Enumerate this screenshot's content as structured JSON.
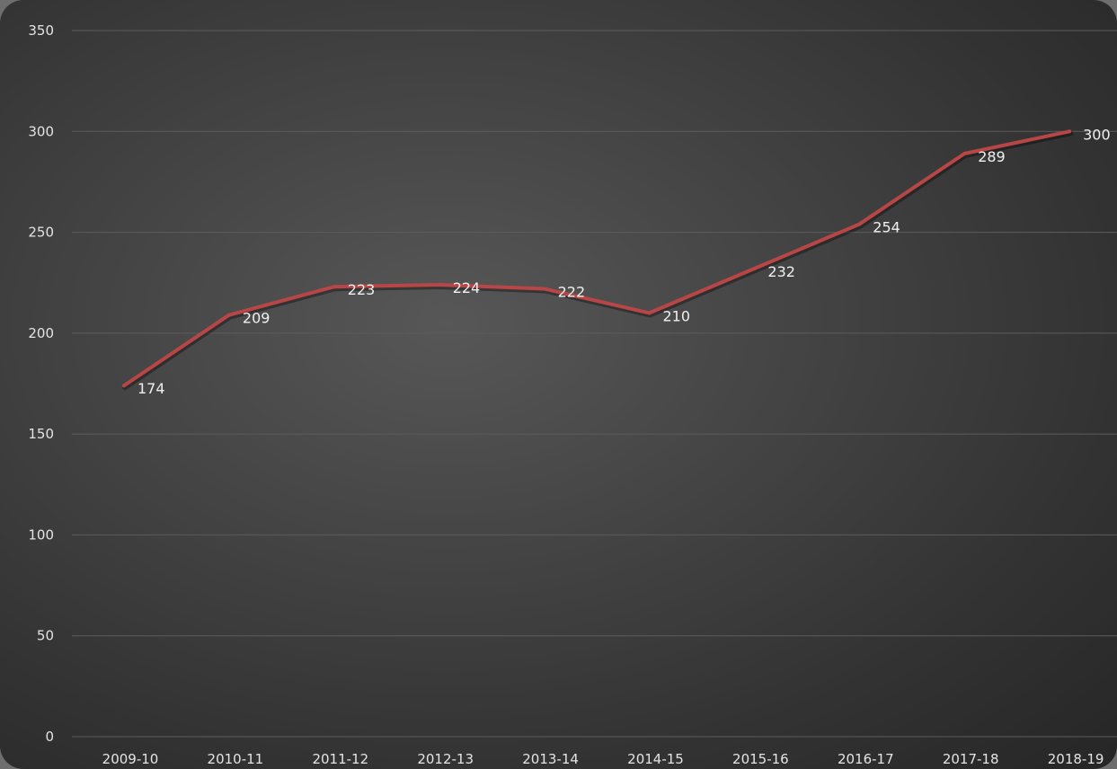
{
  "chart_data": {
    "type": "line",
    "categories": [
      "2009-10",
      "2010-11",
      "2011-12",
      "2012-13",
      "2013-14",
      "2014-15",
      "2015-16",
      "2016-17",
      "2017-18",
      "2018-19"
    ],
    "series": [
      {
        "values": [
          174,
          209,
          223,
          224,
          222,
          210,
          232,
          254,
          289,
          300
        ],
        "color": "#b84646"
      }
    ],
    "data_labels": [
      "174",
      "209",
      "223",
      "224",
      "222",
      "210",
      "232",
      "254",
      "289",
      "300"
    ],
    "y_ticks": [
      0,
      50,
      100,
      150,
      200,
      250,
      300,
      350
    ],
    "y_tick_labels": [
      "0",
      "50",
      "100",
      "150",
      "200",
      "250",
      "300",
      "350"
    ],
    "ylim": [
      0,
      350
    ],
    "grid": true,
    "legend": "none"
  }
}
